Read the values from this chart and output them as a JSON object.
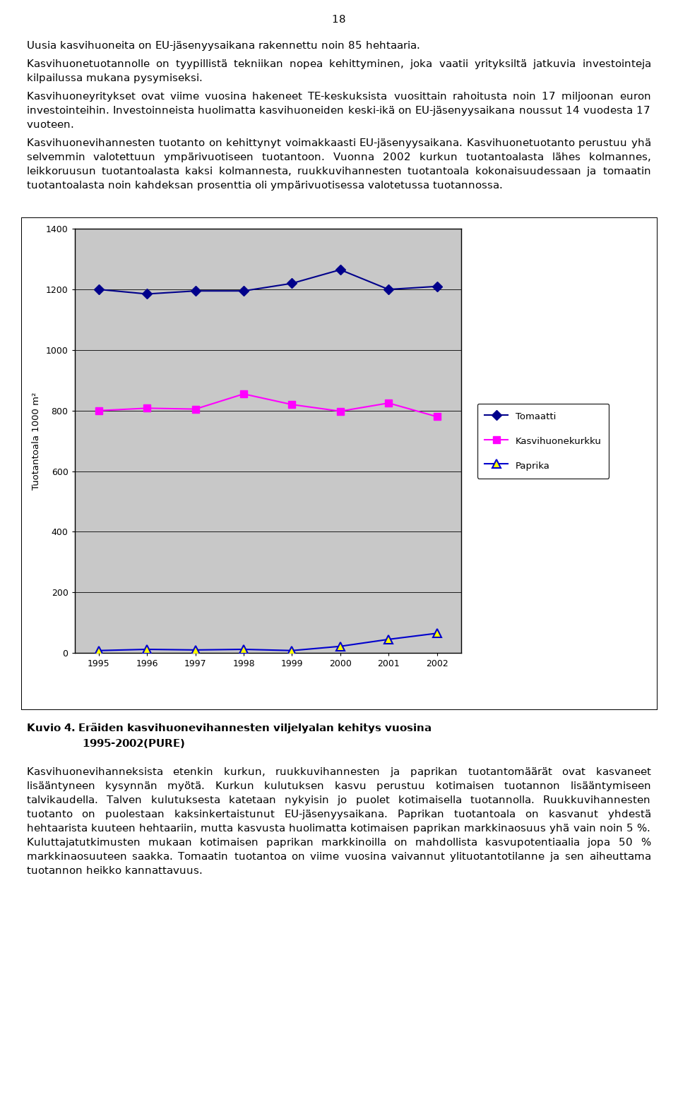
{
  "years": [
    1995,
    1996,
    1997,
    1998,
    1999,
    2000,
    2001,
    2002
  ],
  "tomaatti": [
    1200,
    1185,
    1195,
    1195,
    1220,
    1265,
    1200,
    1210
  ],
  "kasvihuonekurkku": [
    800,
    808,
    805,
    855,
    820,
    798,
    825,
    780
  ],
  "paprika": [
    8,
    12,
    10,
    12,
    8,
    22,
    45,
    65
  ],
  "tomaatti_color": "#00008B",
  "kurkku_color": "#FF00FF",
  "paprika_line_color": "#0000CD",
  "paprika_marker_face": "#FFFF00",
  "paprika_marker_edge": "#0000CD",
  "plot_bg_color": "#C8C8C8",
  "ylabel": "Tuotantoala 1000 m²",
  "ylim": [
    0,
    1400
  ],
  "yticks": [
    0,
    200,
    400,
    600,
    800,
    1000,
    1200,
    1400
  ],
  "legend_labels": [
    "Tomaatti",
    "Kasvihuonekurkku",
    "Paprika"
  ],
  "page_number": "18",
  "para1": "Uusia kasvihuoneita on EU-jäsenyysaikana rakennettu noin 85 hehtaaria.",
  "para2": "Kasvihuonetuotannolle on tyypillistä tekniikan nopea kehittyminen, joka vaatii yrityksiltä jatkuvia investointeja kilpailussa mukana pysymiseksi.",
  "para3": "Kasvihuoneyritykset ovat viime vuosina hakeneet TE-keskuksista vuosittain rahoitusta noin 17 miljoonan euron investointeihin. Investoinneista huolimatta kasvihuoneiden keski-ikä on EU-jäsenyysaikana noussut 14 vuodesta 17 vuoteen.",
  "para4": "Kasvihuonevihannesten tuotanto on kehittynyt voimakkaasti EU-jäsenyysaikana. Kasvihuonetuotanto perustuu yhä selvemmin valotettuun ympärivuotiseen tuotantoon. Vuonna 2002 kurkun tuotantoalasta lähes kolmannes, leikkoruusun tuotantoalasta kaksi kolmannesta, ruukkuvihannesten tuotantoala kokonaisuudessaan ja tomaatin tuotantoalasta noin kahdeksan prosenttia oli ympärivuotisessa valotetussa tuotannossa.",
  "kuvio_label": "Kuvio 4.",
  "kuvio_rest": "  Eräiden kasvihuonevihannesten viljelyalan kehitys vuosina",
  "kuvio_line2": "1995-2002(PURE)",
  "para5": "Kasvihuonevihanneksista etenkin kurkun, ruukkuvihannesten ja paprikan tuotantomäärät ovat kasvaneet lisääntyneen kysynnän myötä. Kurkun kulutuksen kasvu perustuu kotimaisen tuotannon lisääntymiseen talvikaudella. Talven kulutuksesta katetaan nykyisin jo puolet kotimaisella tuotannolla. Ruukkuvihannesten tuotanto on puolestaan kaksinkertaistunut EU-jäsenyysaikana. Paprikan tuotantoala on kasvanut yhdestä hehtaarista kuuteen hehtaariin, mutta kasvusta huolimatta kotimaisen paprikan markkinaosuus yhä vain noin 5 %. Kuluttajatutkimusten mukaan kotimaisen paprikan markkinoilla on mahdollista kasvupotentiaalia jopa 50 % markkinaosuuteen saakka. Tomaatin tuotantoa on viime vuosina vaivannut ylituotantotilanne ja sen aiheuttama tuotannon heikko kannattavuus."
}
